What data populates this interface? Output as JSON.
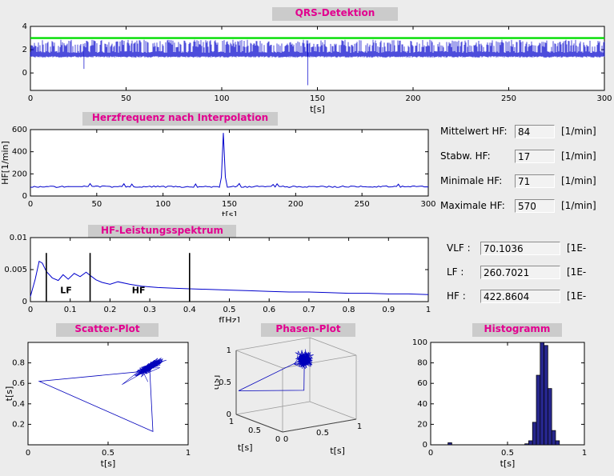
{
  "window": {
    "bg": "#ececec",
    "title_color": "#e2008f",
    "strip_bg": "#cbcbcb"
  },
  "stats": {
    "mittelwert": {
      "label": "Mittelwert HF:",
      "value": "84",
      "unit": "[1/min]"
    },
    "stabw": {
      "label": "Stabw. HF:",
      "value": "17",
      "unit": "[1/min]"
    },
    "minimale": {
      "label": "Minimale HF:",
      "value": "71",
      "unit": "[1/min]"
    },
    "maximale": {
      "label": "Maximale HF:",
      "value": "570",
      "unit": "[1/min]"
    }
  },
  "spectrum_stats": {
    "vlf": {
      "label": "VLF :",
      "value": "70.1036",
      "unit": "[1E-"
    },
    "lf": {
      "label": "LF :",
      "value": "260.7021",
      "unit": "[1E-"
    },
    "hf": {
      "label": "HF :",
      "value": "422.8604",
      "unit": "[1E-"
    }
  },
  "chart_data": [
    {
      "id": "qrs",
      "type": "line",
      "title": "QRS-Detektion",
      "xlabel": "t[s]",
      "xlim": [
        0,
        300
      ],
      "xticks": [
        0,
        50,
        100,
        150,
        200,
        250,
        300
      ],
      "ylim": [
        -1.5,
        4
      ],
      "yticks": [
        0,
        2,
        4
      ],
      "color": "#0000cc",
      "threshold": {
        "y": 3,
        "color": "#00dd00"
      },
      "signal": {
        "kind": "ecg-band",
        "seed": 42,
        "band_low": 1.32,
        "band_high": 1.88,
        "peak_low": 2.2,
        "peak_high": 2.85,
        "spike_density": 0.62,
        "dropouts": [
          {
            "t": 28,
            "min": 0.35,
            "peak": 1.9
          },
          {
            "t": 145,
            "min": -1.05,
            "peak": 2.8
          }
        ]
      }
    },
    {
      "id": "hr",
      "type": "line",
      "title": "Herzfrequenz nach Interpolation",
      "xlabel": "t[s]",
      "ylabel": "HF[1/min]",
      "xlim": [
        0,
        300
      ],
      "xticks": [
        0,
        50,
        100,
        150,
        200,
        250,
        300
      ],
      "ylim": [
        0,
        600
      ],
      "yticks": [
        0,
        200,
        400,
        600
      ],
      "color": "#0000cc",
      "signal": {
        "kind": "noisy-baseline",
        "seed": 9,
        "baseline": 84,
        "noise": 7,
        "min": 71,
        "spikes": [
          {
            "t": 145,
            "value": 570
          }
        ]
      }
    },
    {
      "id": "spectrum",
      "type": "line",
      "title": "HF-Leistungsspektrum",
      "xlabel": "f[Hz]",
      "xlim": [
        0,
        1
      ],
      "xticks": [
        0,
        0.1,
        0.2,
        0.3,
        0.4,
        0.5,
        0.6,
        0.7,
        0.8,
        0.9,
        1
      ],
      "ylim": [
        0,
        0.01
      ],
      "yticks": [
        0,
        0.005,
        0.01
      ],
      "color": "#0000cc",
      "points": [
        [
          0,
          0.0008
        ],
        [
          0.012,
          0.0035
        ],
        [
          0.022,
          0.0063
        ],
        [
          0.03,
          0.006
        ],
        [
          0.04,
          0.0047
        ],
        [
          0.055,
          0.0037
        ],
        [
          0.07,
          0.0033
        ],
        [
          0.082,
          0.0042
        ],
        [
          0.095,
          0.0035
        ],
        [
          0.11,
          0.0044
        ],
        [
          0.125,
          0.0039
        ],
        [
          0.14,
          0.0046
        ],
        [
          0.15,
          0.0041
        ],
        [
          0.165,
          0.0034
        ],
        [
          0.18,
          0.003
        ],
        [
          0.2,
          0.0027
        ],
        [
          0.22,
          0.0031
        ],
        [
          0.25,
          0.0027
        ],
        [
          0.28,
          0.0024
        ],
        [
          0.32,
          0.0022
        ],
        [
          0.36,
          0.0021
        ],
        [
          0.4,
          0.002
        ],
        [
          0.45,
          0.0019
        ],
        [
          0.5,
          0.0018
        ],
        [
          0.55,
          0.0017
        ],
        [
          0.6,
          0.0016
        ],
        [
          0.65,
          0.0015
        ],
        [
          0.7,
          0.0015
        ],
        [
          0.75,
          0.0014
        ],
        [
          0.8,
          0.0013
        ],
        [
          0.85,
          0.0013
        ],
        [
          0.9,
          0.0012
        ],
        [
          0.95,
          0.0012
        ],
        [
          1,
          0.0011
        ]
      ],
      "band_lines": {
        "x": [
          0.04,
          0.15,
          0.4
        ],
        "top": 0.0076,
        "color": "#000000"
      },
      "annotations": [
        {
          "text": "LF",
          "x": 0.075,
          "y": 0.0013,
          "color": "#ff2222"
        },
        {
          "text": "HF",
          "x": 0.255,
          "y": 0.0013,
          "color": "#ff2222"
        }
      ]
    },
    {
      "id": "scatter",
      "type": "scatter",
      "title": "Scatter-Plot",
      "xlabel": "t[s]",
      "ylabel": "t[s]",
      "xlim": [
        0,
        1
      ],
      "xticks": [
        0,
        0.5,
        1
      ],
      "ylim": [
        0,
        1
      ],
      "yticks": [
        0.2,
        0.4,
        0.6,
        0.8
      ],
      "color": "#0000bb",
      "cluster": {
        "cx": 0.76,
        "cy": 0.76,
        "n": 260,
        "sd_along": 0.05,
        "sd_across": 0.013,
        "seed": 13
      },
      "triangle": [
        [
          0.74,
          0.72
        ],
        [
          0.07,
          0.62
        ],
        [
          0.78,
          0.13
        ],
        [
          0.76,
          0.74
        ]
      ]
    },
    {
      "id": "phase",
      "type": "line3d",
      "title": "Phasen-Plot",
      "xlabel": "t[s]",
      "ylabel": "t[s]",
      "zlabel": "t[s]",
      "ticks": [
        0,
        0.5,
        1
      ],
      "color": "#0000bb",
      "cluster": {
        "cx": 0.75,
        "cy": 0.72,
        "cz": 0.78,
        "n": 220,
        "sd": 0.045,
        "seed": 21
      },
      "excursion": [
        [
          0.75,
          0.72,
          0.8
        ],
        [
          0.02,
          0.98,
          0.37
        ],
        [
          0.75,
          0.73,
          0.3
        ],
        [
          0.75,
          0.72,
          0.78
        ]
      ]
    },
    {
      "id": "hist",
      "type": "bar",
      "title": "Histogramm",
      "xlabel": "t[s]",
      "xlim": [
        0,
        1
      ],
      "xticks": [
        0,
        0.5,
        1
      ],
      "ylim": [
        0,
        100
      ],
      "yticks": [
        0,
        20,
        40,
        60,
        80,
        100
      ],
      "bar_color": "#26268c",
      "bin_width": 0.025,
      "bins": [
        {
          "x": 0.125,
          "v": 2
        },
        {
          "x": 0.625,
          "v": 1
        },
        {
          "x": 0.65,
          "v": 4
        },
        {
          "x": 0.675,
          "v": 22
        },
        {
          "x": 0.7,
          "v": 68
        },
        {
          "x": 0.725,
          "v": 100
        },
        {
          "x": 0.75,
          "v": 97
        },
        {
          "x": 0.775,
          "v": 55
        },
        {
          "x": 0.8,
          "v": 14
        },
        {
          "x": 0.825,
          "v": 4
        }
      ]
    }
  ]
}
